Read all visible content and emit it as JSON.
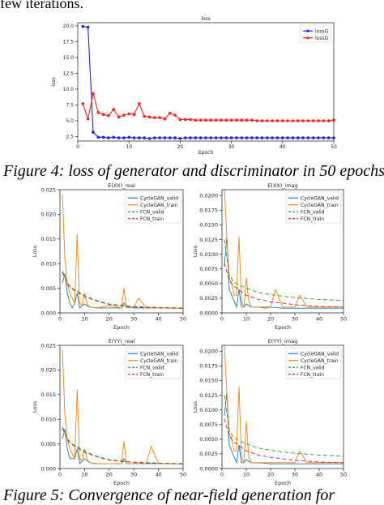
{
  "page": {
    "top_text": "few iterations.",
    "figure4_caption": "Figure 4: loss of generator and discriminator in 50 epochs",
    "figure5_caption": "Figure 5: Convergence of near-field generation for"
  },
  "colors": {
    "lossG": "#1f1fff",
    "lossD": "#ff1f1f",
    "cyclegan_valid": "#1f77b4",
    "cyclegan_train": "#ff7f0e",
    "fcn_valid": "#2ca02c",
    "fcn_train": "#d62728"
  },
  "chart_data": [
    {
      "type": "line",
      "title": "loss",
      "xlabel": "Epoch",
      "ylabel": "loss",
      "xlim": [
        0,
        50
      ],
      "ylim": [
        1.8,
        20.5
      ],
      "xticks": [
        0,
        10,
        20,
        30,
        40,
        50
      ],
      "yticks": [
        2.5,
        5.0,
        7.5,
        10.0,
        12.5,
        15.0,
        17.5,
        20.0
      ],
      "yticklabels": [
        "2.5",
        "5.0",
        "7.5",
        "10.0",
        "12.5",
        "15.0",
        "17.5",
        "20.0"
      ],
      "legend": "top-right",
      "grid": false,
      "series": [
        {
          "name": "lossG",
          "x": [
            1,
            2,
            3,
            4,
            5,
            6,
            7,
            8,
            9,
            10,
            11,
            12,
            13,
            14,
            15,
            16,
            17,
            18,
            19,
            20,
            21,
            22,
            23,
            24,
            25,
            26,
            27,
            28,
            29,
            30,
            31,
            32,
            33,
            34,
            35,
            36,
            37,
            38,
            39,
            40,
            41,
            42,
            43,
            44,
            45,
            46,
            47,
            48,
            49,
            50
          ],
          "values": [
            19.9,
            19.8,
            3.2,
            2.4,
            2.4,
            2.3,
            2.4,
            2.3,
            2.3,
            2.4,
            2.3,
            2.3,
            2.3,
            2.2,
            2.3,
            2.3,
            2.3,
            2.3,
            2.3,
            2.2,
            2.3,
            2.3,
            2.3,
            2.3,
            2.3,
            2.3,
            2.3,
            2.3,
            2.3,
            2.3,
            2.3,
            2.3,
            2.3,
            2.3,
            2.3,
            2.3,
            2.3,
            2.3,
            2.3,
            2.3,
            2.3,
            2.3,
            2.3,
            2.3,
            2.3,
            2.3,
            2.3,
            2.3,
            2.3,
            2.3
          ]
        },
        {
          "name": "lossD",
          "x": [
            1,
            2,
            3,
            4,
            5,
            6,
            7,
            8,
            9,
            10,
            11,
            12,
            13,
            14,
            15,
            16,
            17,
            18,
            19,
            20,
            21,
            22,
            23,
            24,
            25,
            26,
            27,
            28,
            29,
            30,
            31,
            32,
            33,
            34,
            35,
            36,
            37,
            38,
            39,
            40,
            41,
            42,
            43,
            44,
            45,
            46,
            47,
            48,
            49,
            50
          ],
          "values": [
            7.7,
            5.3,
            9.3,
            6.3,
            6.0,
            5.8,
            6.8,
            5.6,
            5.9,
            6.1,
            6.0,
            7.7,
            5.7,
            5.6,
            5.5,
            5.5,
            5.3,
            6.2,
            5.9,
            5.2,
            5.2,
            5.2,
            5.1,
            5.1,
            5.1,
            5.1,
            5.1,
            5.1,
            5.1,
            5.1,
            5.1,
            5.1,
            5.1,
            5.1,
            5.0,
            5.0,
            5.0,
            5.0,
            5.0,
            5.0,
            5.0,
            5.0,
            5.0,
            5.0,
            5.0,
            5.0,
            5.0,
            5.0,
            5.0,
            5.1
          ]
        }
      ]
    },
    {
      "type": "line",
      "title": "E(XX)_real",
      "xlabel": "Epoch",
      "ylabel": "Loss",
      "xlim": [
        0,
        50
      ],
      "ylim": [
        0,
        0.025
      ],
      "xticks": [
        0,
        10,
        20,
        30,
        40,
        50
      ],
      "yticks": [
        0.0,
        0.005,
        0.01,
        0.015,
        0.02,
        0.025
      ],
      "yticklabels": [
        "0.000",
        "0.005",
        "0.010",
        "0.015",
        "0.020",
        "0.025"
      ],
      "legend": "top-right",
      "series": [
        {
          "name": "CycleGAN_valid",
          "x": [
            1,
            2,
            3,
            4,
            5,
            6,
            7,
            8,
            9,
            10,
            12,
            15,
            18,
            20,
            25,
            26,
            27,
            30,
            35,
            40,
            45,
            50
          ],
          "values": [
            0.006,
            0.008,
            0.004,
            0.002,
            0.001,
            0.002,
            0.004,
            0.001,
            0.0015,
            0.0018,
            0.0012,
            0.001,
            0.001,
            0.001,
            0.001,
            0.002,
            0.0012,
            0.001,
            0.001,
            0.001,
            0.001,
            0.001
          ]
        },
        {
          "name": "CycleGAN_train",
          "x": [
            1,
            2,
            3,
            4,
            5,
            6,
            7,
            8,
            9,
            10,
            11,
            12,
            15,
            20,
            25,
            26,
            27,
            30,
            32,
            35,
            40,
            45,
            50
          ],
          "values": [
            0.024,
            0.011,
            0.006,
            0.004,
            0.003,
            0.002,
            0.016,
            0.002,
            0.0015,
            0.004,
            0.0018,
            0.0012,
            0.001,
            0.0015,
            0.001,
            0.005,
            0.001,
            0.0012,
            0.003,
            0.001,
            0.001,
            0.001,
            0.001
          ]
        },
        {
          "name": "FCN_valid",
          "x": [
            1,
            3,
            5,
            10,
            15,
            20,
            30,
            40,
            50
          ],
          "values": [
            0.0085,
            0.006,
            0.005,
            0.0035,
            0.0025,
            0.0018,
            0.0013,
            0.0011,
            0.001
          ]
        },
        {
          "name": "FCN_train",
          "x": [
            1,
            3,
            5,
            10,
            15,
            20,
            30,
            40,
            50
          ],
          "values": [
            0.0082,
            0.0058,
            0.0048,
            0.0033,
            0.0024,
            0.0017,
            0.0012,
            0.001,
            0.0009
          ]
        }
      ]
    },
    {
      "type": "line",
      "title": "E(XX)_imag",
      "xlabel": "Epoch",
      "ylabel": "Loss",
      "xlim": [
        0,
        50
      ],
      "ylim": [
        0,
        0.021
      ],
      "xticks": [
        0,
        10,
        20,
        30,
        40,
        50
      ],
      "yticks": [
        0.0,
        0.0025,
        0.005,
        0.0075,
        0.01,
        0.0125,
        0.015,
        0.0175,
        0.02
      ],
      "yticklabels": [
        "0.0000",
        "0.0025",
        "0.0050",
        "0.0075",
        "0.0100",
        "0.0125",
        "0.0150",
        "0.0175",
        "0.0200"
      ],
      "legend": "top-right",
      "series": [
        {
          "name": "CycleGAN_valid",
          "x": [
            1,
            2,
            3,
            4,
            5,
            6,
            7,
            8,
            9,
            10,
            12,
            15,
            18,
            20,
            25,
            30,
            35,
            40,
            45,
            50
          ],
          "values": [
            0.008,
            0.013,
            0.004,
            0.003,
            0.002,
            0.001,
            0.004,
            0.001,
            0.001,
            0.0015,
            0.001,
            0.001,
            0.0008,
            0.001,
            0.0008,
            0.0008,
            0.0008,
            0.0008,
            0.0008,
            0.0008
          ]
        },
        {
          "name": "CycleGAN_train",
          "x": [
            1,
            2,
            3,
            4,
            5,
            6,
            7,
            8,
            9,
            10,
            11,
            12,
            15,
            20,
            22,
            25,
            30,
            32,
            35,
            40,
            45,
            50
          ],
          "values": [
            0.021,
            0.013,
            0.006,
            0.005,
            0.003,
            0.003,
            0.013,
            0.002,
            0.001,
            0.006,
            0.002,
            0.001,
            0.001,
            0.001,
            0.004,
            0.001,
            0.001,
            0.003,
            0.001,
            0.001,
            0.001,
            0.001
          ]
        },
        {
          "name": "FCN_valid",
          "x": [
            1,
            3,
            5,
            10,
            15,
            20,
            30,
            40,
            50
          ],
          "values": [
            0.0125,
            0.0065,
            0.0052,
            0.0042,
            0.0035,
            0.0031,
            0.0026,
            0.0023,
            0.0021
          ]
        },
        {
          "name": "FCN_train",
          "x": [
            1,
            3,
            5,
            10,
            15,
            20,
            30,
            40,
            50
          ],
          "values": [
            0.0085,
            0.0055,
            0.0045,
            0.003,
            0.0023,
            0.0019,
            0.0014,
            0.0011,
            0.001
          ]
        }
      ]
    },
    {
      "type": "line",
      "title": "E(YY)_real",
      "xlabel": "Epoch",
      "ylabel": "Loss",
      "xlim": [
        0,
        50
      ],
      "ylim": [
        0,
        0.025
      ],
      "xticks": [
        0,
        10,
        20,
        30,
        40,
        50
      ],
      "yticks": [
        0.0,
        0.005,
        0.01,
        0.015,
        0.02,
        0.025
      ],
      "yticklabels": [
        "0.000",
        "0.005",
        "0.010",
        "0.015",
        "0.020",
        "0.025"
      ],
      "legend": "top-right",
      "series": [
        {
          "name": "CycleGAN_valid",
          "x": [
            1,
            2,
            3,
            4,
            5,
            6,
            7,
            8,
            9,
            10,
            12,
            15,
            20,
            25,
            26,
            27,
            30,
            35,
            40,
            45,
            50
          ],
          "values": [
            0.006,
            0.008,
            0.004,
            0.002,
            0.002,
            0.002,
            0.004,
            0.001,
            0.0015,
            0.002,
            0.0012,
            0.001,
            0.001,
            0.001,
            0.002,
            0.001,
            0.001,
            0.001,
            0.001,
            0.001,
            0.001
          ]
        },
        {
          "name": "CycleGAN_train",
          "x": [
            1,
            2,
            3,
            4,
            5,
            6,
            7,
            8,
            9,
            10,
            11,
            12,
            15,
            20,
            25,
            26,
            27,
            30,
            35,
            37,
            40,
            45,
            50
          ],
          "values": [
            0.024,
            0.011,
            0.006,
            0.004,
            0.003,
            0.002,
            0.016,
            0.002,
            0.0015,
            0.004,
            0.002,
            0.0012,
            0.001,
            0.001,
            0.001,
            0.0055,
            0.001,
            0.001,
            0.001,
            0.0045,
            0.001,
            0.001,
            0.001
          ]
        },
        {
          "name": "FCN_valid",
          "x": [
            1,
            3,
            5,
            10,
            15,
            20,
            30,
            40,
            50
          ],
          "values": [
            0.0085,
            0.006,
            0.005,
            0.0035,
            0.0025,
            0.0018,
            0.0013,
            0.0011,
            0.001
          ]
        },
        {
          "name": "FCN_train",
          "x": [
            1,
            3,
            5,
            10,
            15,
            20,
            30,
            40,
            50
          ],
          "values": [
            0.0082,
            0.0058,
            0.0048,
            0.0033,
            0.0024,
            0.0017,
            0.0012,
            0.001,
            0.0009
          ]
        }
      ]
    },
    {
      "type": "line",
      "title": "E(YY)_imag",
      "xlabel": "Epoch",
      "ylabel": "Loss",
      "xlim": [
        0,
        50
      ],
      "ylim": [
        0,
        0.021
      ],
      "xticks": [
        0,
        10,
        20,
        30,
        40,
        50
      ],
      "yticks": [
        0.0,
        0.0025,
        0.005,
        0.0075,
        0.01,
        0.0125,
        0.015,
        0.0175,
        0.02
      ],
      "yticklabels": [
        "0.0000",
        "0.0025",
        "0.0050",
        "0.0075",
        "0.0100",
        "0.0125",
        "0.0150",
        "0.0175",
        "0.0200"
      ],
      "legend": "top-right",
      "series": [
        {
          "name": "CycleGAN_valid",
          "x": [
            1,
            2,
            3,
            4,
            5,
            6,
            7,
            8,
            9,
            10,
            12,
            15,
            20,
            25,
            30,
            35,
            40,
            45,
            50
          ],
          "values": [
            0.009,
            0.013,
            0.004,
            0.003,
            0.002,
            0.001,
            0.004,
            0.001,
            0.001,
            0.0015,
            0.001,
            0.001,
            0.0008,
            0.0008,
            0.0008,
            0.0008,
            0.0008,
            0.0008,
            0.0008
          ]
        },
        {
          "name": "CycleGAN_train",
          "x": [
            1,
            2,
            3,
            4,
            5,
            6,
            7,
            8,
            9,
            10,
            11,
            12,
            15,
            20,
            25,
            30,
            32,
            35,
            40,
            45,
            50
          ],
          "values": [
            0.021,
            0.013,
            0.006,
            0.005,
            0.003,
            0.003,
            0.014,
            0.002,
            0.001,
            0.008,
            0.002,
            0.001,
            0.001,
            0.001,
            0.001,
            0.001,
            0.003,
            0.001,
            0.001,
            0.001,
            0.001
          ]
        },
        {
          "name": "FCN_valid",
          "x": [
            1,
            3,
            5,
            10,
            15,
            20,
            30,
            40,
            50
          ],
          "values": [
            0.0125,
            0.0065,
            0.0052,
            0.0042,
            0.0035,
            0.0031,
            0.0026,
            0.0023,
            0.0021
          ]
        },
        {
          "name": "FCN_train",
          "x": [
            1,
            3,
            5,
            10,
            15,
            20,
            30,
            40,
            50
          ],
          "values": [
            0.0085,
            0.0055,
            0.0045,
            0.003,
            0.0023,
            0.0019,
            0.0014,
            0.0011,
            0.001
          ]
        }
      ]
    }
  ]
}
